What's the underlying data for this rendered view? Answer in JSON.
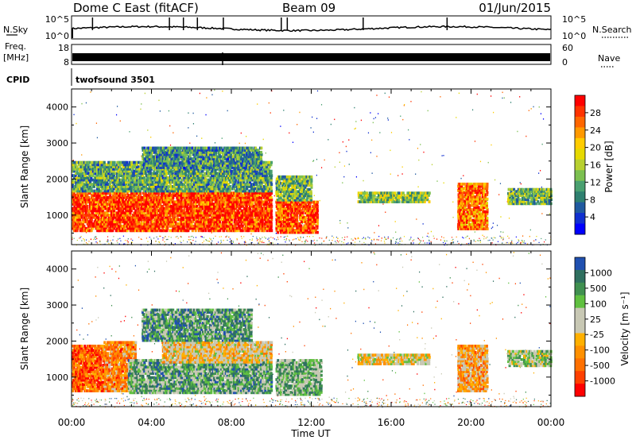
{
  "header": {
    "station": "Dome C East (fitACF)",
    "beam": "Beam 09",
    "date": "01/Jun/2015"
  },
  "panels": {
    "nsky": {
      "label": "N.Sky",
      "left_ticks": [
        "10^5",
        "10^0"
      ],
      "right_ticks": [
        "10^5",
        "10^0"
      ],
      "right_label": "N.Search"
    },
    "freq": {
      "label_top": "Freq.",
      "label_unit": "[MHz]",
      "left_ticks": [
        "18",
        "8"
      ],
      "right_ticks": [
        "60",
        "0"
      ],
      "right_label": "Nave"
    },
    "cpid": {
      "label": "CPID",
      "text": "twofsound 3501"
    }
  },
  "chart_data": [
    {
      "type": "heatmap",
      "name": "power",
      "ylabel": "Slant Range [km]",
      "yticks": [
        "4000",
        "3000",
        "2000",
        "1000"
      ],
      "ylim": [
        180,
        4500
      ],
      "xlim": [
        0,
        24
      ],
      "colorbar_label": "Power [dB]",
      "colorbar_ticks": [
        "28",
        "24",
        "20",
        "16",
        "12",
        "8",
        "4"
      ],
      "colorscale": [
        "#ff0000",
        "#ff3300",
        "#ff6600",
        "#ff9900",
        "#ffcc00",
        "#e6d900",
        "#b8d030",
        "#7cc050",
        "#4aa070",
        "#2f8070",
        "#205aa0",
        "#1030d0",
        "#0000ff"
      ],
      "regions": [
        {
          "t": [
            0.0,
            10.0
          ],
          "r": [
            550,
            1650
          ],
          "level": 0.88
        },
        {
          "t": [
            0.0,
            10.0
          ],
          "r": [
            1650,
            2500
          ],
          "level": 0.35
        },
        {
          "t": [
            3.5,
            9.5
          ],
          "r": [
            2300,
            2900
          ],
          "level": 0.3
        },
        {
          "t": [
            10.2,
            12.3
          ],
          "r": [
            500,
            1400
          ],
          "level": 0.85
        },
        {
          "t": [
            10.2,
            12.0
          ],
          "r": [
            1400,
            2100
          ],
          "level": 0.4
        },
        {
          "t": [
            14.3,
            17.9
          ],
          "r": [
            1350,
            1650
          ],
          "level": 0.45
        },
        {
          "t": [
            19.3,
            20.8
          ],
          "r": [
            600,
            1900
          ],
          "level": 0.78
        },
        {
          "t": [
            21.8,
            24.0
          ],
          "r": [
            1300,
            1750
          ],
          "level": 0.4
        }
      ]
    },
    {
      "type": "heatmap",
      "name": "velocity",
      "ylabel": "Slant Range [km]",
      "yticks": [
        "4000",
        "3000",
        "2000",
        "1000"
      ],
      "ylim": [
        180,
        4500
      ],
      "xlim": [
        0,
        24
      ],
      "colorbar_label": "Velocity [m s⁻¹]",
      "colorbar_ticks": [
        "1000",
        "500",
        "100",
        "25",
        "-25",
        "-100",
        "-500",
        "-1000"
      ],
      "colorscale": [
        "#2050b0",
        "#307060",
        "#409050",
        "#60c040",
        "#c8c8b4",
        "#c8c8b4",
        "#ffb000",
        "#ff9000",
        "#ff7000",
        "#ff4000",
        "#ff0000"
      ],
      "regions": [
        {
          "t": [
            0.0,
            1.6
          ],
          "r": [
            600,
            1900
          ],
          "level": 0.2
        },
        {
          "t": [
            1.6,
            3.2
          ],
          "r": [
            600,
            2000
          ],
          "level": 0.3
        },
        {
          "t": [
            2.8,
            10.0
          ],
          "r": [
            550,
            1500
          ],
          "level": 0.72
        },
        {
          "t": [
            4.5,
            10.0
          ],
          "r": [
            1400,
            2000
          ],
          "level": 0.45
        },
        {
          "t": [
            3.5,
            9.0
          ],
          "r": [
            2000,
            2900
          ],
          "level": 0.75
        },
        {
          "t": [
            10.2,
            12.5
          ],
          "r": [
            500,
            1500
          ],
          "level": 0.68
        },
        {
          "t": [
            14.3,
            17.9
          ],
          "r": [
            1350,
            1650
          ],
          "level": 0.5
        },
        {
          "t": [
            19.3,
            20.8
          ],
          "r": [
            600,
            1900
          ],
          "level": 0.35
        },
        {
          "t": [
            21.8,
            24.0
          ],
          "r": [
            1300,
            1750
          ],
          "level": 0.6
        }
      ]
    }
  ],
  "x_axis": {
    "label": "Time UT",
    "ticks": [
      "00:00",
      "04:00",
      "08:00",
      "12:00",
      "16:00",
      "20:00",
      "00:00"
    ]
  }
}
